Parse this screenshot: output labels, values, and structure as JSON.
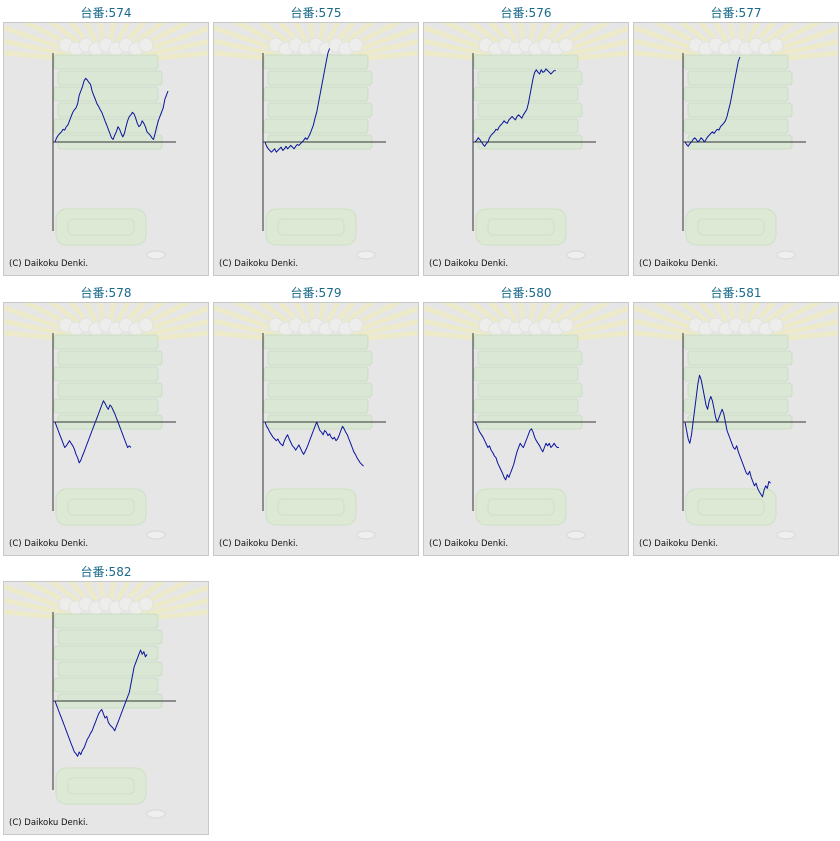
{
  "label_prefix": "台番:",
  "copyright": "(C) Daikoku Denki.",
  "line_color": "#0b149e",
  "axis_color": "#333333",
  "chart_data": [
    {
      "type": "line",
      "title": "台番:574",
      "machine": "574",
      "y": [
        0,
        5,
        8,
        10,
        12,
        15,
        14,
        18,
        20,
        25,
        30,
        35,
        38,
        40,
        45,
        55,
        60,
        65,
        72,
        75,
        73,
        70,
        68,
        60,
        55,
        50,
        45,
        42,
        38,
        35,
        30,
        25,
        20,
        15,
        10,
        5,
        3,
        8,
        12,
        18,
        15,
        10,
        6,
        10,
        18,
        25,
        30,
        32,
        35,
        33,
        28,
        22,
        18,
        20,
        25,
        22,
        18,
        12,
        10,
        8,
        5,
        3,
        10,
        18,
        25,
        30,
        35,
        40,
        50,
        55,
        60
      ]
    },
    {
      "type": "line",
      "title": "台番:575",
      "machine": "575",
      "y": [
        0,
        -5,
        -8,
        -10,
        -12,
        -10,
        -8,
        -12,
        -10,
        -8,
        -6,
        -10,
        -8,
        -5,
        -8,
        -6,
        -4,
        -6,
        -8,
        -5,
        -3,
        -4,
        -2,
        0,
        2,
        5,
        3,
        6,
        10,
        15,
        20,
        28,
        35,
        45,
        55,
        65,
        75,
        85,
        95,
        105,
        110
      ]
    },
    {
      "type": "line",
      "title": "台番:576",
      "machine": "576",
      "y": [
        0,
        2,
        5,
        3,
        0,
        -3,
        -5,
        -2,
        0,
        5,
        8,
        10,
        12,
        15,
        14,
        18,
        20,
        22,
        25,
        23,
        22,
        26,
        28,
        30,
        28,
        26,
        30,
        32,
        30,
        28,
        32,
        35,
        38,
        45,
        55,
        65,
        75,
        82,
        85,
        82,
        80,
        85,
        82,
        83,
        86,
        84,
        82,
        80,
        82,
        84,
        84
      ]
    },
    {
      "type": "line",
      "title": "台番:577",
      "machine": "577",
      "y": [
        0,
        -3,
        -5,
        -2,
        0,
        3,
        5,
        3,
        0,
        2,
        5,
        3,
        0,
        3,
        6,
        8,
        10,
        12,
        10,
        13,
        15,
        14,
        18,
        20,
        22,
        25,
        30,
        38,
        45,
        55,
        65,
        75,
        85,
        95,
        100
      ]
    },
    {
      "type": "line",
      "title": "台番:578",
      "machine": "578",
      "y": [
        0,
        -5,
        -10,
        -15,
        -20,
        -25,
        -30,
        -28,
        -25,
        -22,
        -25,
        -28,
        -32,
        -38,
        -42,
        -48,
        -45,
        -40,
        -35,
        -30,
        -25,
        -20,
        -15,
        -10,
        -5,
        0,
        5,
        10,
        15,
        20,
        25,
        22,
        18,
        15,
        20,
        18,
        14,
        10,
        5,
        0,
        -5,
        -10,
        -15,
        -20,
        -25,
        -30,
        -28,
        -30
      ]
    },
    {
      "type": "line",
      "title": "台番:579",
      "machine": "579",
      "y": [
        0,
        -5,
        -8,
        -12,
        -15,
        -18,
        -20,
        -22,
        -20,
        -24,
        -26,
        -28,
        -22,
        -18,
        -15,
        -20,
        -24,
        -28,
        -30,
        -33,
        -30,
        -27,
        -31,
        -35,
        -38,
        -34,
        -30,
        -25,
        -20,
        -15,
        -10,
        -5,
        0,
        -5,
        -10,
        -12,
        -15,
        -10,
        -12,
        -16,
        -14,
        -18,
        -20,
        -18,
        -22,
        -20,
        -15,
        -10,
        -5,
        -8,
        -12,
        -15,
        -20,
        -25,
        -30,
        -35,
        -38,
        -42,
        -45,
        -48,
        -50,
        -52
      ]
    },
    {
      "type": "line",
      "title": "台番:580",
      "machine": "580",
      "y": [
        0,
        -3,
        -8,
        -12,
        -15,
        -18,
        -22,
        -26,
        -30,
        -28,
        -33,
        -36,
        -40,
        -42,
        -48,
        -52,
        -56,
        -60,
        -65,
        -68,
        -62,
        -65,
        -60,
        -55,
        -50,
        -42,
        -35,
        -30,
        -25,
        -28,
        -30,
        -25,
        -20,
        -15,
        -10,
        -8,
        -12,
        -18,
        -22,
        -25,
        -28,
        -32,
        -35,
        -30,
        -25,
        -28,
        -25,
        -30,
        -28,
        -25,
        -28,
        -30,
        -30
      ]
    },
    {
      "type": "line",
      "title": "台番:581",
      "machine": "581",
      "y": [
        0,
        -10,
        -20,
        -25,
        -15,
        0,
        15,
        30,
        45,
        55,
        50,
        40,
        30,
        20,
        15,
        25,
        30,
        25,
        15,
        5,
        0,
        5,
        10,
        15,
        10,
        0,
        -10,
        -15,
        -20,
        -25,
        -30,
        -32,
        -28,
        -35,
        -40,
        -45,
        -50,
        -55,
        -60,
        -62,
        -58,
        -65,
        -70,
        -75,
        -72,
        -78,
        -82,
        -85,
        -88,
        -80,
        -75,
        -78,
        -70,
        -72
      ]
    },
    {
      "type": "line",
      "title": "台番:582",
      "machine": "582",
      "y": [
        0,
        -5,
        -10,
        -15,
        -20,
        -25,
        -30,
        -35,
        -40,
        -45,
        -50,
        -55,
        -60,
        -62,
        -65,
        -60,
        -63,
        -58,
        -55,
        -50,
        -45,
        -42,
        -38,
        -35,
        -30,
        -25,
        -20,
        -15,
        -12,
        -10,
        -15,
        -20,
        -18,
        -25,
        -28,
        -30,
        -32,
        -35,
        -30,
        -25,
        -20,
        -15,
        -10,
        -5,
        0,
        5,
        10,
        20,
        30,
        40,
        45,
        50,
        55,
        60,
        55,
        58,
        52,
        55
      ]
    }
  ]
}
